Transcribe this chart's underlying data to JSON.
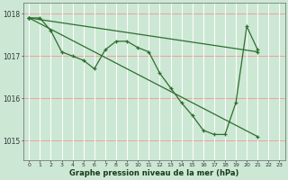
{
  "background_color": "#cce8d4",
  "grid_color_h": "#f0a0a0",
  "grid_color_v": "#ffffff",
  "line_color": "#2d6e2d",
  "title": "Graphe pression niveau de la mer (hPa)",
  "ylim": [
    1014.55,
    1018.25
  ],
  "xlim": [
    -0.5,
    23.5
  ],
  "yticks": [
    1015,
    1016,
    1017,
    1018
  ],
  "xticks": [
    0,
    1,
    2,
    3,
    4,
    5,
    6,
    7,
    8,
    9,
    10,
    11,
    12,
    13,
    14,
    15,
    16,
    17,
    18,
    19,
    20,
    21,
    22,
    23
  ],
  "series": [
    {
      "x": [
        0,
        1,
        2,
        3,
        4,
        5,
        6,
        7,
        8,
        9,
        10,
        11,
        12,
        13,
        14,
        15,
        16,
        17,
        18,
        19,
        20,
        21
      ],
      "y": [
        1017.9,
        1017.9,
        1017.6,
        1017.1,
        1017.0,
        1016.9,
        1016.7,
        1017.15,
        1017.35,
        1017.35,
        1017.2,
        1017.1,
        1016.6,
        1016.25,
        1015.9,
        1015.6,
        1015.25,
        1015.15,
        1015.15,
        1015.9,
        1017.7,
        1017.15
      ]
    },
    {
      "x": [
        0,
        21
      ],
      "y": [
        1017.9,
        1017.1
      ]
    },
    {
      "x": [
        0,
        21
      ],
      "y": [
        1017.9,
        1015.1
      ]
    },
    {
      "x": [
        2,
        3
      ],
      "y": [
        1017.6,
        1017.1
      ]
    }
  ]
}
